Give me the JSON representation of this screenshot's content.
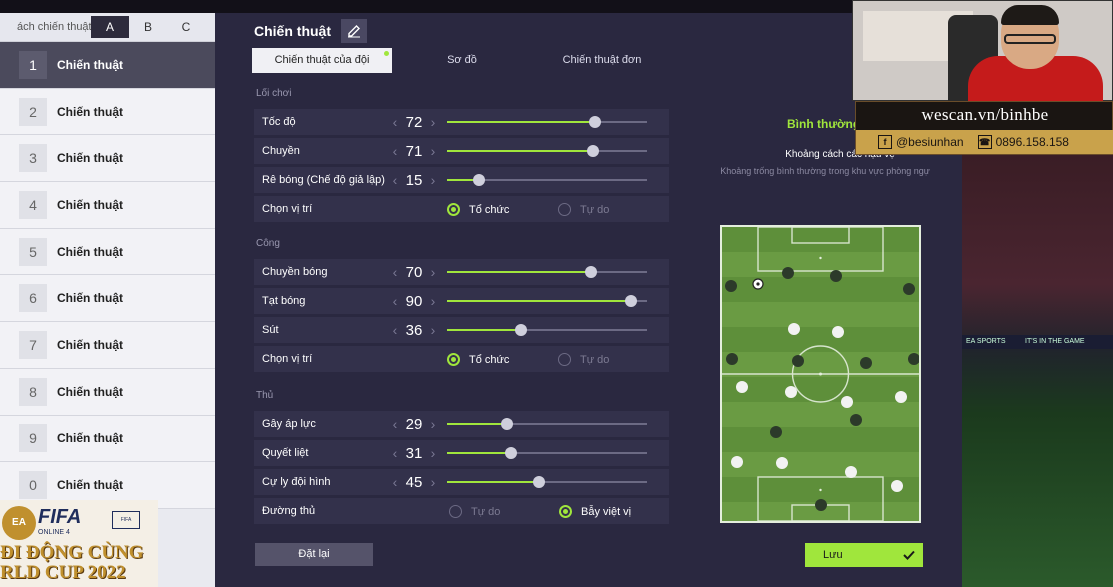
{
  "sidebar": {
    "title": "ách chiến thuật",
    "tabs": [
      "A",
      "B",
      "C"
    ],
    "active_tab": 0,
    "items": [
      {
        "num": "1",
        "label": "Chiến thuật"
      },
      {
        "num": "2",
        "label": "Chiến thuật"
      },
      {
        "num": "3",
        "label": "Chiến thuật"
      },
      {
        "num": "4",
        "label": "Chiến thuật"
      },
      {
        "num": "5",
        "label": "Chiến thuật"
      },
      {
        "num": "6",
        "label": "Chiến thuật"
      },
      {
        "num": "7",
        "label": "Chiến thuật"
      },
      {
        "num": "8",
        "label": "Chiến thuật"
      },
      {
        "num": "9",
        "label": "Chiến thuật"
      },
      {
        "num": "0",
        "label": "Chiến thuật"
      }
    ]
  },
  "header": {
    "title": "Chiến thuật"
  },
  "tabs": [
    "Chiến thuật của đội",
    "Sơ đồ",
    "Chiến thuật đơn"
  ],
  "sections": {
    "loi_choi": "Lối chơi",
    "cong": "Công",
    "thu": "Thủ"
  },
  "sliders": {
    "toc_do": {
      "label": "Tốc độ",
      "value": "72",
      "fill": 0.74
    },
    "chuyen": {
      "label": "Chuyền",
      "value": "71",
      "fill": 0.73
    },
    "re_bong": {
      "label": "Rê bóng (Chế độ giả lập)",
      "value": "15",
      "fill": 0.16
    },
    "chuyen_bong": {
      "label": "Chuyền bóng",
      "value": "70",
      "fill": 0.72
    },
    "tat_bong": {
      "label": "Tạt bóng",
      "value": "90",
      "fill": 0.92
    },
    "sut": {
      "label": "Sút",
      "value": "36",
      "fill": 0.37
    },
    "gay_ap_luc": {
      "label": "Gây áp lực",
      "value": "29",
      "fill": 0.3
    },
    "quyet_liet": {
      "label": "Quyết liệt",
      "value": "31",
      "fill": 0.32
    },
    "cu_ly": {
      "label": "Cự ly đội hình",
      "value": "45",
      "fill": 0.46
    }
  },
  "choices": {
    "chon_vi_tri_1": {
      "label": "Chọn vị trí",
      "opt1": "Tổ chức",
      "opt2": "Tự do",
      "selected": 1
    },
    "chon_vi_tri_2": {
      "label": "Chọn vị trí",
      "opt1": "Tổ chức",
      "opt2": "Tự do",
      "selected": 1
    },
    "duong_thu": {
      "label": "Đường thủ",
      "opt1": "Tự do",
      "opt2": "Bẫy việt vị",
      "selected": 2
    }
  },
  "info": {
    "mode": "Bình thường",
    "title": "Khoảng cách các hậu vệ",
    "desc": "Khoảng trống bình thường trong khu vực phòng ngự"
  },
  "buttons": {
    "reset": "Đặt lại",
    "save": "Lưu"
  },
  "colors": {
    "accent": "#a0e63c",
    "panel": "#2a2840"
  },
  "overlay": {
    "site": "wescan.vn/binhbe",
    "fb": "@besiunhan",
    "phone": "0896.158.158",
    "board": "EA SPORTS",
    "board2": "IT'S IN THE GAME"
  },
  "logo": {
    "ea": "EA",
    "fifa": "FIFA",
    "online": "ONLINE 4",
    "line1": "ĐI ĐỘNG CÙNG",
    "line2": "RLD CUP 2022"
  }
}
